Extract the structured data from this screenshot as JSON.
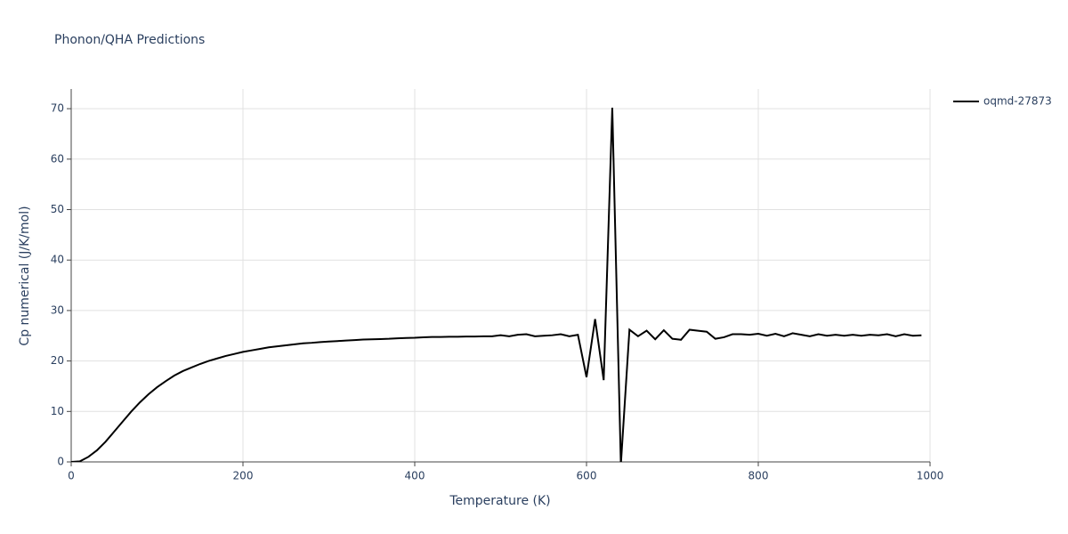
{
  "chart_data": {
    "type": "line",
    "title": "Phonon/QHA Predictions",
    "x_label": "Temperature (K)",
    "y_label": "Cp numerical (J/K/mol)",
    "x": [
      0,
      10,
      20,
      30,
      40,
      50,
      60,
      70,
      80,
      90,
      100,
      110,
      120,
      130,
      140,
      150,
      160,
      170,
      180,
      190,
      200,
      210,
      220,
      230,
      240,
      250,
      260,
      270,
      280,
      290,
      300,
      310,
      320,
      330,
      340,
      350,
      360,
      370,
      380,
      390,
      400,
      410,
      420,
      430,
      440,
      450,
      460,
      470,
      480,
      490,
      500,
      510,
      520,
      530,
      540,
      550,
      560,
      570,
      580,
      590,
      600,
      610,
      620,
      630,
      640,
      650,
      660,
      670,
      680,
      690,
      700,
      710,
      720,
      730,
      740,
      750,
      760,
      770,
      780,
      790,
      800,
      810,
      820,
      830,
      840,
      850,
      860,
      870,
      880,
      890,
      900,
      910,
      920,
      930,
      940,
      950,
      960,
      970,
      980,
      990
    ],
    "series": [
      {
        "name": "oqmd-27873",
        "color": "#000000",
        "values": [
          0,
          0.1,
          1,
          2.3,
          4,
          6,
          8,
          10,
          11.8,
          13.4,
          14.8,
          16,
          17.1,
          18,
          18.7,
          19.4,
          20,
          20.5,
          21,
          21.4,
          21.8,
          22.1,
          22.4,
          22.7,
          22.9,
          23.1,
          23.3,
          23.5,
          23.6,
          23.75,
          23.85,
          23.95,
          24.05,
          24.15,
          24.25,
          24.3,
          24.35,
          24.4,
          24.5,
          24.55,
          24.6,
          24.7,
          24.75,
          24.75,
          24.8,
          24.8,
          24.85,
          24.85,
          24.9,
          24.9,
          25.1,
          24.9,
          25.2,
          25.3,
          24.9,
          25.0,
          25.1,
          25.3,
          24.9,
          25.2,
          16.8,
          28.3,
          16.2,
          70.2,
          -0.5,
          26.2,
          24.9,
          26.0,
          24.3,
          26.1,
          24.4,
          24.2,
          26.2,
          26.0,
          25.8,
          24.4,
          24.7,
          25.3,
          25.3,
          25.2,
          25.4,
          25.0,
          25.4,
          24.9,
          25.5,
          25.2,
          24.9,
          25.3,
          25.0,
          25.2,
          25.0,
          25.2,
          25.0,
          25.2,
          25.1,
          25.3,
          24.9,
          25.3,
          25.0,
          25.1
        ]
      }
    ],
    "xlim": [
      0,
      1000
    ],
    "xticks": [
      0,
      200,
      400,
      600,
      800,
      1000
    ],
    "ylim": [
      0,
      73.9
    ],
    "yticks": [
      0,
      10,
      20,
      30,
      40,
      50,
      60,
      70
    ],
    "grid": true
  }
}
